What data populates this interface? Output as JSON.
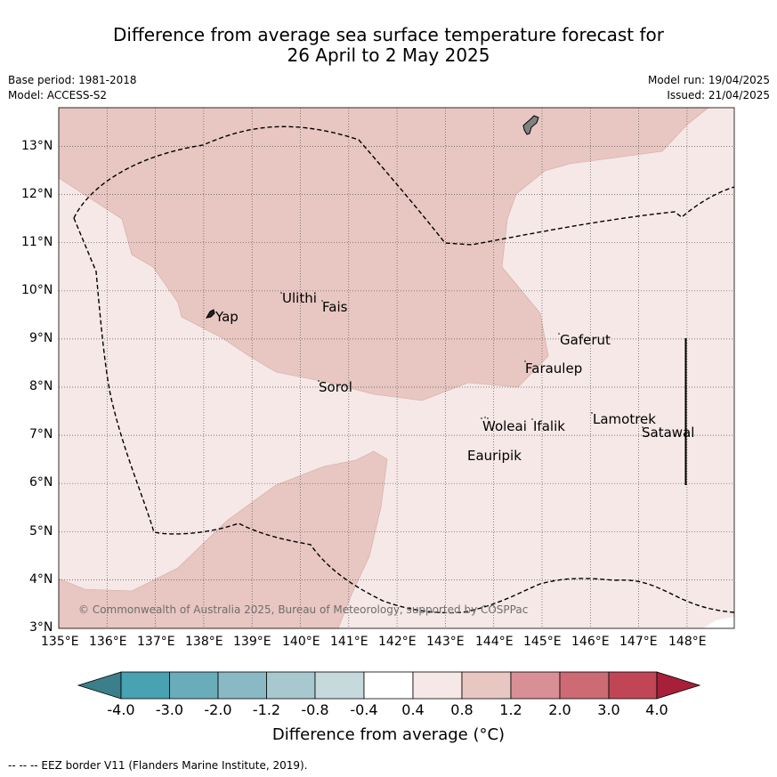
{
  "header": {
    "title_line1": "Difference from average sea surface temperature forecast for",
    "title_line2": "26 April to 2 May 2025",
    "base_period": "Base period: 1981-2018",
    "model": "Model: ACCESS-S2",
    "model_run": "Model run: 19/04/2025",
    "issued": "Issued: 21/04/2025"
  },
  "map": {
    "lon_ticks": [
      "135°E",
      "136°E",
      "137°E",
      "138°E",
      "139°E",
      "140°E",
      "141°E",
      "142°E",
      "143°E",
      "144°E",
      "145°E",
      "146°E",
      "147°E",
      "148°E"
    ],
    "lat_ticks": [
      "13°N",
      "12°N",
      "11°N",
      "10°N",
      "9°N",
      "8°N",
      "7°N",
      "6°N",
      "5°N",
      "4°N",
      "3°N"
    ],
    "places": [
      {
        "name": "Yap"
      },
      {
        "name": "Ulithi"
      },
      {
        "name": "Fais"
      },
      {
        "name": "Sorol"
      },
      {
        "name": "Gaferut"
      },
      {
        "name": "Faraulep"
      },
      {
        "name": "Woleai"
      },
      {
        "name": "Ifalik"
      },
      {
        "name": "Lamotrek"
      },
      {
        "name": "Satawal"
      },
      {
        "name": "Eauripik"
      }
    ],
    "copyright": "© Commonwealth of Australia 2025, Bureau of Meteorology, supported by COSPPac"
  },
  "colorbar": {
    "labels": [
      "-4.0",
      "-3.0",
      "-2.0",
      "-1.2",
      "-0.8",
      "-0.4",
      "0.4",
      "0.8",
      "1.2",
      "2.0",
      "3.0",
      "4.0"
    ],
    "colors": [
      "#3a7f8a",
      "#47a2b2",
      "#69adbb",
      "#89b9c4",
      "#a8c8cf",
      "#c6d9dd",
      "#ffffff",
      "#f5e8e6",
      "#e8c6c1",
      "#d88f95",
      "#cc6b74",
      "#c04656",
      "#a81f3a"
    ],
    "title": "Difference from average (°C)"
  },
  "footnote": "--  --  -- EEZ border V11 (Flanders Marine Institute, 2019)."
}
